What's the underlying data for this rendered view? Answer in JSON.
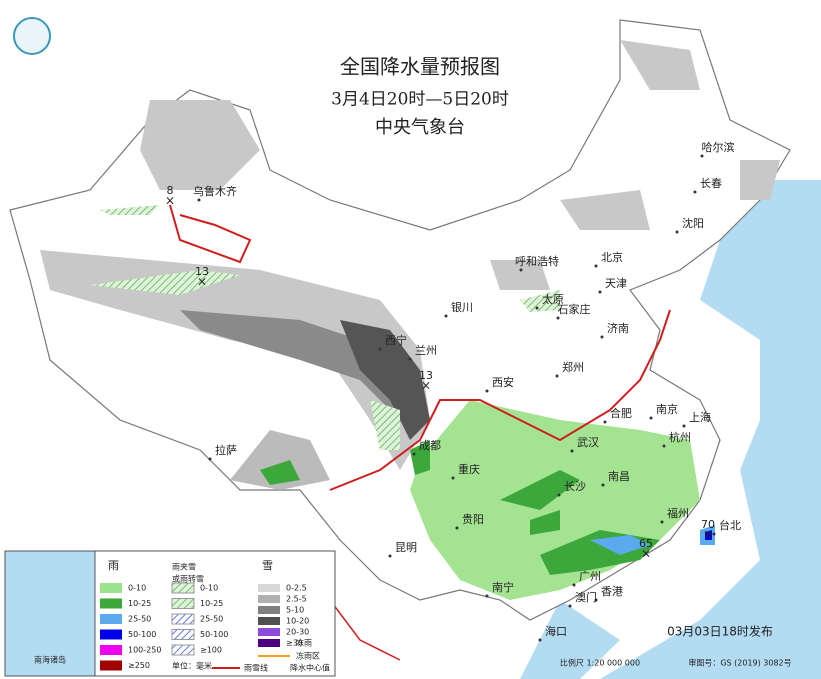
{
  "header": {
    "title": "全国降水量预报图",
    "subtitle": "3月4日20时—5日20时",
    "issuer": "中央气象台"
  },
  "cities": [
    "乌鲁木齐",
    "哈尔滨",
    "长春",
    "沈阳",
    "呼和浩特",
    "北京",
    "天津",
    "石家庄",
    "太原",
    "银川",
    "济南",
    "西宁",
    "兰州",
    "郑州",
    "西安",
    "合肥",
    "南京",
    "上海",
    "武汉",
    "杭州",
    "成都",
    "拉萨",
    "重庆",
    "长沙",
    "南昌",
    "贵阳",
    "福州",
    "台北",
    "昆明",
    "南宁",
    "广州",
    "香港",
    "澳门",
    "海口"
  ],
  "precipitation_centers": [
    8,
    13,
    13,
    65,
    70
  ],
  "legend": {
    "rain": {
      "title": "雨",
      "items": [
        "0-10",
        "10-25",
        "25-50",
        "50-100",
        "100-250",
        "≥250"
      ]
    },
    "sleet": {
      "title": [
        "雨夹雪",
        "或雨转雪"
      ],
      "items": [
        "0-10",
        "10-25",
        "25-50",
        "50-100",
        "≥100"
      ]
    },
    "snow": {
      "title": "雪",
      "items": [
        "0-2.5",
        "2.5-5",
        "5-10",
        "10-20",
        "20-30",
        "≥30"
      ]
    },
    "unit": "单位：毫米",
    "symbols": [
      "冻雨区",
      "冻雨",
      "雨雪线",
      "降水中心值"
    ]
  },
  "footer": {
    "issued": "03月03日18时发布",
    "scale": "比例尺 1:20 000 000",
    "review_number": "审图号：GS (2019) 3082号"
  },
  "inset": {
    "label": "南海诸岛"
  }
}
